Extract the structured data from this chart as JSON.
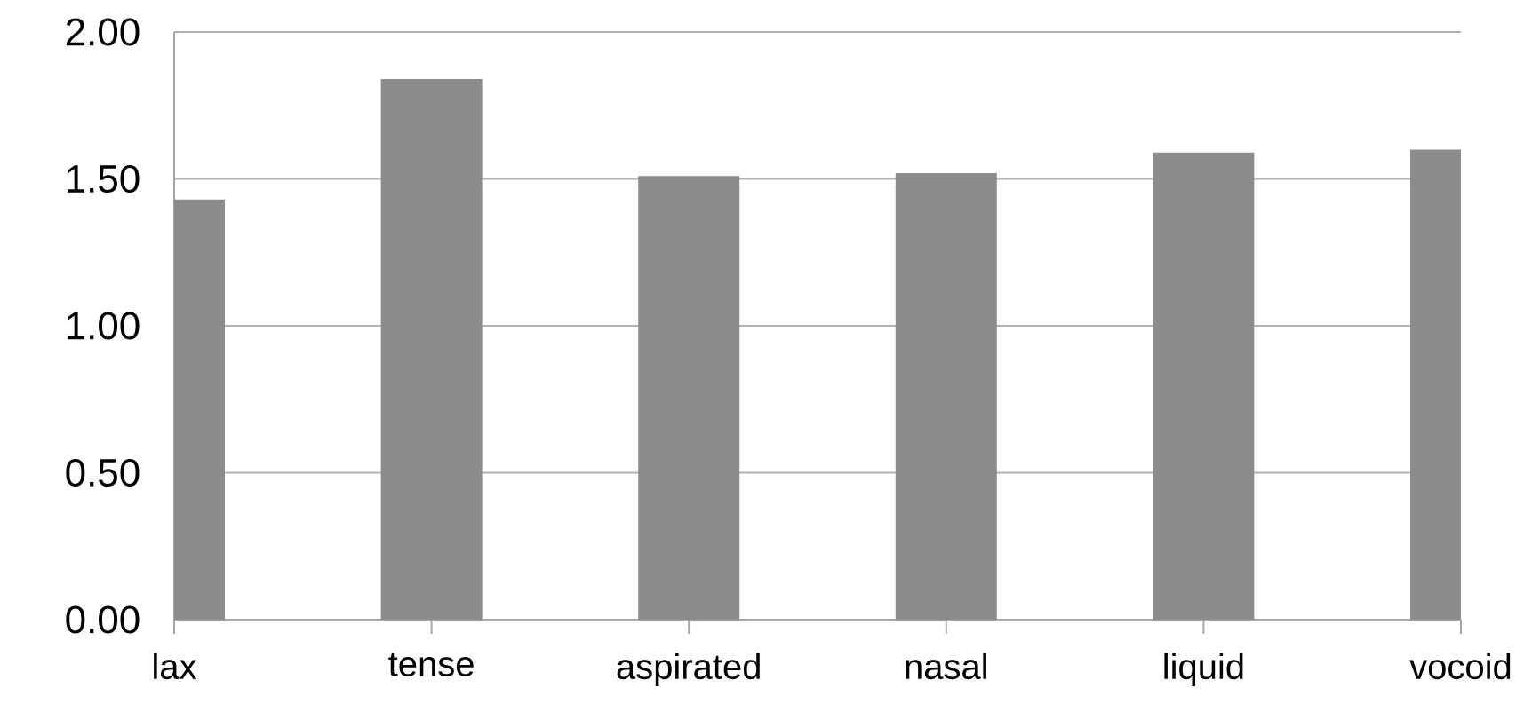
{
  "chart_data": {
    "type": "bar",
    "categories": [
      "lax",
      "tense",
      "aspirated",
      "nasal",
      "liquid",
      "vocoid"
    ],
    "values": [
      1.43,
      1.84,
      1.51,
      1.52,
      1.59,
      1.6
    ],
    "color": "#8c8c8c",
    "ylim": [
      0,
      2
    ],
    "yticks": [
      {
        "value": 0,
        "label": "0.00"
      },
      {
        "value": 0.5,
        "label": "0.50"
      },
      {
        "value": 1,
        "label": "1.00"
      },
      {
        "value": 1.5,
        "label": "1.50"
      },
      {
        "value": 2,
        "label": "2.00"
      }
    ],
    "grid": "y"
  }
}
